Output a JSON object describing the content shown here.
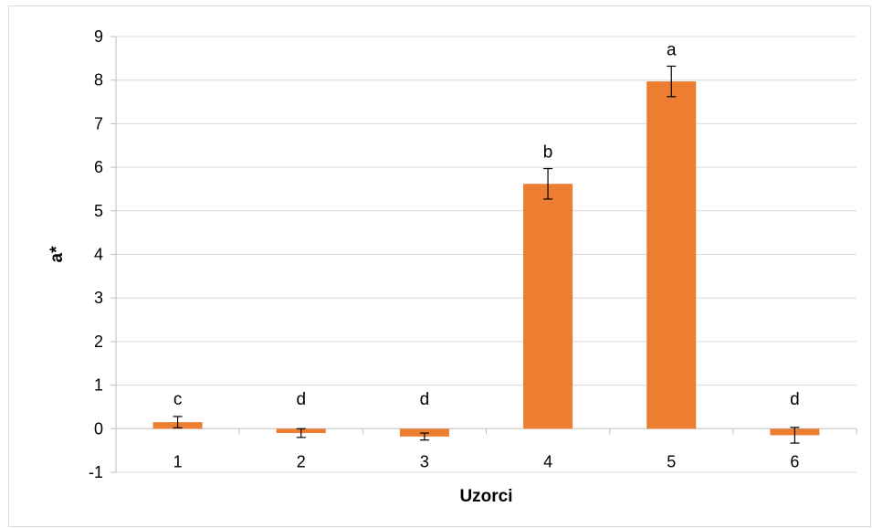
{
  "chart_data": {
    "type": "bar",
    "xlabel": "Uzorci",
    "ylabel": "a*",
    "ylim": [
      -1,
      9
    ],
    "yticks": [
      "-1",
      "0",
      "1",
      "2",
      "3",
      "4",
      "5",
      "6",
      "7",
      "8",
      "9"
    ],
    "grid": true,
    "legend": "none",
    "bar_color": "#ED7D31",
    "categories": [
      "1",
      "2",
      "3",
      "4",
      "5",
      "6"
    ],
    "values": [
      0.15,
      -0.1,
      -0.18,
      5.62,
      7.97,
      -0.15
    ],
    "errors": [
      0.13,
      0.1,
      0.08,
      0.35,
      0.35,
      0.18
    ],
    "significance_labels": [
      "c",
      "d",
      "d",
      "b",
      "a",
      "d"
    ]
  }
}
